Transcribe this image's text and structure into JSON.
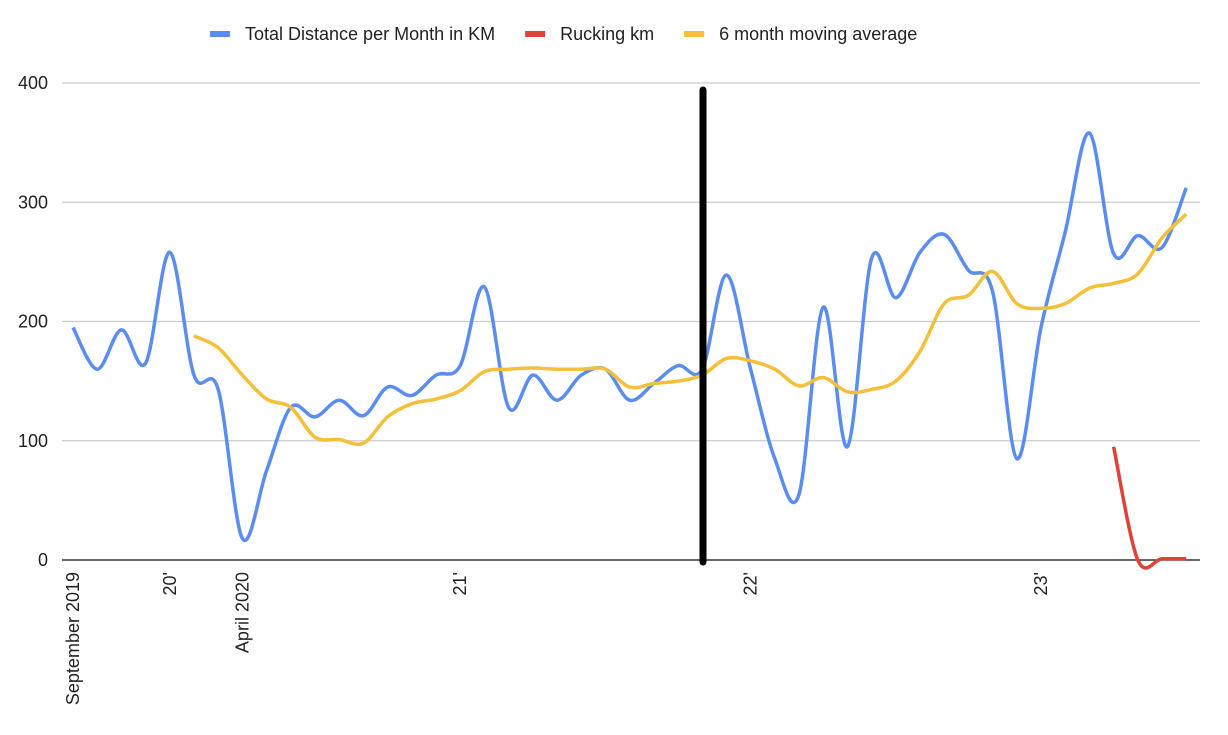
{
  "chart_data": {
    "type": "line",
    "categories": [
      "September 2019",
      null,
      null,
      null,
      "20'",
      null,
      null,
      "April 2020",
      null,
      null,
      null,
      null,
      null,
      null,
      null,
      null,
      "21'",
      null,
      null,
      null,
      null,
      null,
      null,
      null,
      null,
      null,
      null,
      null,
      "22'",
      null,
      null,
      null,
      null,
      null,
      null,
      null,
      null,
      null,
      null,
      null,
      "23'",
      null,
      null,
      null,
      null,
      null,
      null
    ],
    "series": [
      {
        "name": "Total Distance per Month in KM",
        "color": "#5b8def",
        "values": [
          195,
          160,
          193,
          165,
          258,
          155,
          143,
          18,
          75,
          128,
          120,
          134,
          121,
          145,
          138,
          155,
          163,
          229,
          128,
          155,
          134,
          155,
          160,
          134,
          148,
          163,
          160,
          239,
          160,
          85,
          55,
          212,
          95,
          253,
          220,
          258,
          273,
          243,
          225,
          85,
          195,
          275,
          358,
          257,
          272,
          262,
          312
        ]
      },
      {
        "name": "Rucking km",
        "color": "#db4437",
        "values": [
          null,
          null,
          null,
          null,
          null,
          null,
          null,
          null,
          null,
          null,
          null,
          null,
          null,
          null,
          null,
          null,
          null,
          null,
          null,
          null,
          null,
          null,
          null,
          null,
          null,
          null,
          null,
          null,
          null,
          null,
          null,
          null,
          null,
          null,
          null,
          null,
          null,
          null,
          null,
          null,
          null,
          null,
          null,
          95,
          0,
          1,
          1
        ]
      },
      {
        "name": "6 month moving average",
        "color": "#f4bf3a",
        "values": [
          null,
          null,
          null,
          null,
          null,
          188,
          178,
          155,
          135,
          128,
          103,
          101,
          98,
          120,
          131,
          135,
          142,
          158,
          160,
          161,
          160,
          160,
          160,
          145,
          148,
          150,
          155,
          169,
          167,
          160,
          146,
          153,
          141,
          143,
          150,
          175,
          215,
          222,
          242,
          215,
          211,
          215,
          228,
          232,
          240,
          270,
          290
        ]
      }
    ],
    "ylim": [
      0,
      400
    ],
    "yticks": [
      0,
      100,
      200,
      300,
      400
    ],
    "grid": true,
    "legend": "top"
  }
}
